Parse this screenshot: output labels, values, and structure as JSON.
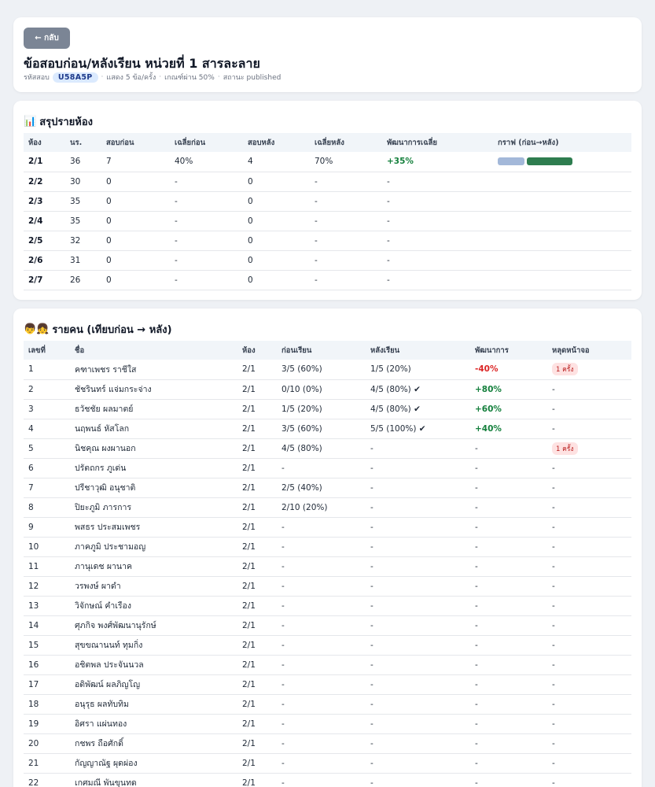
{
  "header": {
    "back_label": "← กลับ",
    "title": "ข้อสอบก่อน/หลังเรียน หน่วยที่ 1 สารละลาย",
    "code_label": "รหัสสอบ",
    "code": "U58A5P",
    "meta_show": "แสดง 5 ข้อ/ครั้ง",
    "meta_pass": "เกณฑ์ผ่าน 50%",
    "meta_status": "สถานะ published"
  },
  "summary": {
    "icon": "📊",
    "title": "สรุปรายห้อง",
    "columns": [
      "ห้อง",
      "นร.",
      "สอบก่อน",
      "เฉลี่ยก่อน",
      "สอบหลัง",
      "เฉลี่ยหลัง",
      "พัฒนาการเฉลี่ย",
      "กราฟ (ก่อน→หลัง)"
    ],
    "rows": [
      {
        "room": "2/1",
        "students": "36",
        "pre_count": "7",
        "pre_avg": "40%",
        "post_count": "4",
        "post_avg": "70%",
        "dev": "+35%",
        "graph_pre": 0.4,
        "graph_post": 0.7
      },
      {
        "room": "2/2",
        "students": "30",
        "pre_count": "0",
        "pre_avg": "-",
        "post_count": "0",
        "post_avg": "-",
        "dev": "-"
      },
      {
        "room": "2/3",
        "students": "35",
        "pre_count": "0",
        "pre_avg": "-",
        "post_count": "0",
        "post_avg": "-",
        "dev": "-"
      },
      {
        "room": "2/4",
        "students": "35",
        "pre_count": "0",
        "pre_avg": "-",
        "post_count": "0",
        "post_avg": "-",
        "dev": "-"
      },
      {
        "room": "2/5",
        "students": "32",
        "pre_count": "0",
        "pre_avg": "-",
        "post_count": "0",
        "post_avg": "-",
        "dev": "-"
      },
      {
        "room": "2/6",
        "students": "31",
        "pre_count": "0",
        "pre_avg": "-",
        "post_count": "0",
        "post_avg": "-",
        "dev": "-"
      },
      {
        "room": "2/7",
        "students": "26",
        "pre_count": "0",
        "pre_avg": "-",
        "post_count": "0",
        "post_avg": "-",
        "dev": "-"
      }
    ],
    "colors": {
      "pre_bar": "#a3b8d9",
      "post_bar": "#2e7d4f"
    }
  },
  "students": {
    "icon": "👦👧",
    "title": "รายคน (เทียบก่อน → หลัง)",
    "columns": [
      "เลขที่",
      "ชื่อ",
      "ห้อง",
      "ก่อนเรียน",
      "หลังเรียน",
      "พัฒนาการ",
      "หลุดหน้าจอ"
    ],
    "rows": [
      {
        "no": "1",
        "name": "คฑาเพชร ราชีใส",
        "room": "2/1",
        "pre": "3/5 (60%)",
        "post": "1/5 (20%)",
        "dev": "-40%",
        "dev_type": "neg",
        "leave": "1 ครั้ง",
        "leave_badge": true
      },
      {
        "no": "2",
        "name": "ชัชรินทร์ แจ่มกระจ่าง",
        "room": "2/1",
        "pre": "0/10 (0%)",
        "post": "4/5 (80%) ✔",
        "dev": "+80%",
        "dev_type": "pos",
        "leave": "-"
      },
      {
        "no": "3",
        "name": "ธวัชชัย ผลมาตย์",
        "room": "2/1",
        "pre": "1/5 (20%)",
        "post": "4/5 (80%) ✔",
        "dev": "+60%",
        "dev_type": "pos",
        "leave": "-"
      },
      {
        "no": "4",
        "name": "นฤพนธ์ หัสโลก",
        "room": "2/1",
        "pre": "3/5 (60%)",
        "post": "5/5 (100%) ✔",
        "dev": "+40%",
        "dev_type": "pos",
        "leave": "-"
      },
      {
        "no": "5",
        "name": "นิชคุณ ผงผานอก",
        "room": "2/1",
        "pre": "4/5 (80%)",
        "post": "-",
        "dev": "-",
        "leave": "1 ครั้ง",
        "leave_badge": true
      },
      {
        "no": "6",
        "name": "ปรัตถกร ภูเด่น",
        "room": "2/1",
        "pre": "-",
        "post": "-",
        "dev": "-",
        "leave": "-"
      },
      {
        "no": "7",
        "name": "ปรีชาวุฒิ อนุชาติ",
        "room": "2/1",
        "pre": "2/5 (40%)",
        "post": "-",
        "dev": "-",
        "leave": "-"
      },
      {
        "no": "8",
        "name": "ปิยะภูมิ ภารการ",
        "room": "2/1",
        "pre": "2/10 (20%)",
        "post": "-",
        "dev": "-",
        "leave": "-"
      },
      {
        "no": "9",
        "name": "พสธร ประสมเพชร",
        "room": "2/1",
        "pre": "-",
        "post": "-",
        "dev": "-",
        "leave": "-"
      },
      {
        "no": "10",
        "name": "ภาคภูมิ ประชามอญ",
        "room": "2/1",
        "pre": "-",
        "post": "-",
        "dev": "-",
        "leave": "-"
      },
      {
        "no": "11",
        "name": "ภานุเดช ผานาค",
        "room": "2/1",
        "pre": "-",
        "post": "-",
        "dev": "-",
        "leave": "-"
      },
      {
        "no": "12",
        "name": "วรพงษ์ ผาดำ",
        "room": "2/1",
        "pre": "-",
        "post": "-",
        "dev": "-",
        "leave": "-"
      },
      {
        "no": "13",
        "name": "วิจักษณ์ คำเรือง",
        "room": "2/1",
        "pre": "-",
        "post": "-",
        "dev": "-",
        "leave": "-"
      },
      {
        "no": "14",
        "name": "ศุภกิจ พงศ์พัฒนานุรักษ์",
        "room": "2/1",
        "pre": "-",
        "post": "-",
        "dev": "-",
        "leave": "-"
      },
      {
        "no": "15",
        "name": "สุขขณานนท์ ทุมกิ่ง",
        "room": "2/1",
        "pre": "-",
        "post": "-",
        "dev": "-",
        "leave": "-"
      },
      {
        "no": "16",
        "name": "อชิตพล ประจันนวล",
        "room": "2/1",
        "pre": "-",
        "post": "-",
        "dev": "-",
        "leave": "-"
      },
      {
        "no": "17",
        "name": "อดิพัฒน์ ผลภิญโญ",
        "room": "2/1",
        "pre": "-",
        "post": "-",
        "dev": "-",
        "leave": "-"
      },
      {
        "no": "18",
        "name": "อนุรุธ ผลทับทิม",
        "room": "2/1",
        "pre": "-",
        "post": "-",
        "dev": "-",
        "leave": "-"
      },
      {
        "no": "19",
        "name": "อิศรา แผ่นทอง",
        "room": "2/1",
        "pre": "-",
        "post": "-",
        "dev": "-",
        "leave": "-"
      },
      {
        "no": "20",
        "name": "กชพร ถือศักดิ์",
        "room": "2/1",
        "pre": "-",
        "post": "-",
        "dev": "-",
        "leave": "-"
      },
      {
        "no": "21",
        "name": "กัญญาณัฐ ผุดผ่อง",
        "room": "2/1",
        "pre": "-",
        "post": "-",
        "dev": "-",
        "leave": "-"
      },
      {
        "no": "22",
        "name": "เกศมณี พันขุนทด",
        "room": "2/1",
        "pre": "-",
        "post": "-",
        "dev": "-",
        "leave": "-"
      }
    ]
  }
}
